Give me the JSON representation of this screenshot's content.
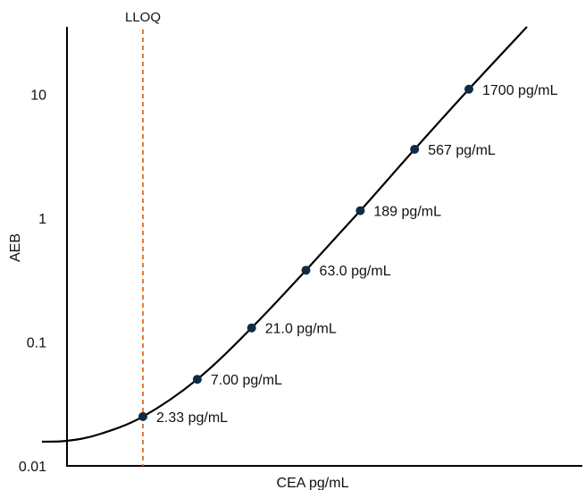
{
  "chart_data": {
    "type": "line",
    "title": "",
    "xlabel": "CEA pg/mL",
    "ylabel": "AEB",
    "y_scale": "log",
    "ylim": [
      0.01,
      40
    ],
    "y_ticks": [
      {
        "value": 0.01,
        "label": "0.01"
      },
      {
        "value": 0.1,
        "label": "0.1"
      },
      {
        "value": 1,
        "label": "1"
      },
      {
        "value": 10,
        "label": "10"
      }
    ],
    "grid": false,
    "legend": "none",
    "lloq": {
      "label": "LLOQ",
      "x": 2.33,
      "color": "#E07B39"
    },
    "series": [
      {
        "values": [
          {
            "x": 2.33,
            "y": 0.025,
            "label": "2.33 pg/mL"
          },
          {
            "x": 7.0,
            "y": 0.05,
            "label": "7.00 pg/mL"
          },
          {
            "x": 21.0,
            "y": 0.13,
            "label": "21.0 pg/mL"
          },
          {
            "x": 63.0,
            "y": 0.38,
            "label": "63.0 pg/mL"
          },
          {
            "x": 189,
            "y": 1.15,
            "label": "189 pg/mL"
          },
          {
            "x": 567,
            "y": 3.6,
            "label": "567 pg/mL"
          },
          {
            "x": 1700,
            "y": 11,
            "label": "1700 pg/mL"
          }
        ]
      }
    ],
    "colors": {
      "curve": "#000000",
      "point": "#0F2B46",
      "lloq": "#E07B39",
      "axis": "#000000"
    }
  }
}
